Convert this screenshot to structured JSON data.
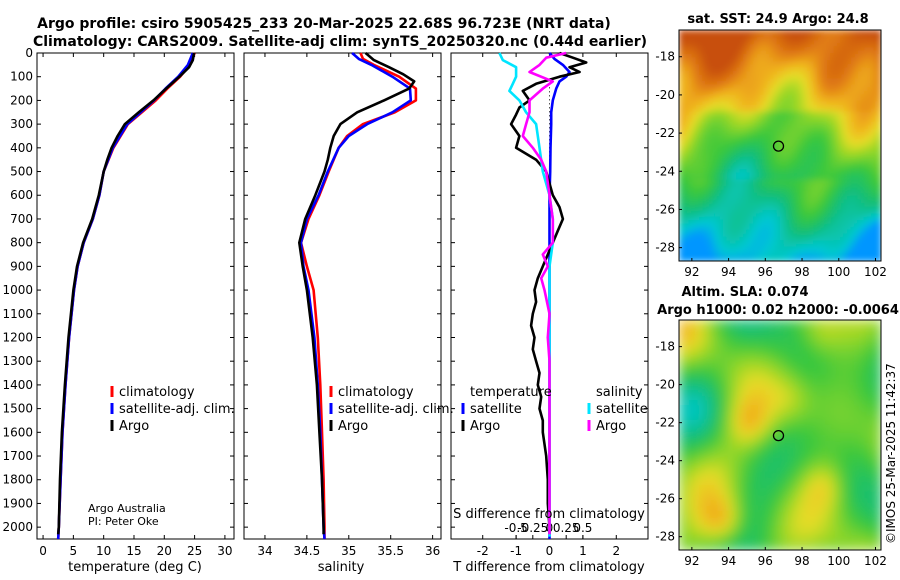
{
  "title": {
    "line1": "Argo profile: csiro 5905425_233 20-Mar-2025 22.68S 96.723E (NRT data)",
    "line2": "Climatology: CARS2009. Satellite-adj clim: synTS_20250320.nc (0.44d earlier)"
  },
  "credit": "©IMOS 25-Mar-2025 11:42:37",
  "attribution": {
    "org": "Argo Australia",
    "pi": "PI: Peter Oke"
  },
  "colors": {
    "red": "#ff0000",
    "blue": "#0000ff",
    "black": "#000000",
    "cyan": "#00e5ff",
    "magenta": "#ff00ff",
    "marker": "#000000"
  },
  "chart_data": [
    {
      "id": "temperature",
      "type": "line",
      "xlabel": "temperature (deg C)",
      "xlim": [
        -1,
        31.5
      ],
      "ylim": [
        2050,
        0
      ],
      "xticks": [
        0,
        5,
        10,
        15,
        20,
        25,
        30
      ],
      "yticks": [
        0,
        100,
        200,
        300,
        400,
        500,
        600,
        700,
        800,
        900,
        1000,
        1100,
        1200,
        1300,
        1400,
        1500,
        1600,
        1700,
        1800,
        1900,
        2000
      ],
      "legend": [
        "climatology",
        "satellite-adj. clim.",
        "Argo"
      ],
      "series": [
        {
          "name": "climatology",
          "color": "red",
          "depth": [
            0,
            50,
            100,
            150,
            200,
            250,
            300,
            400,
            500,
            600,
            700,
            800,
            900,
            1000,
            1200,
            1400,
            1600,
            1800,
            2000,
            2050
          ],
          "values": [
            25.0,
            24.2,
            22.6,
            20.5,
            18.6,
            16.3,
            14.0,
            11.6,
            10.0,
            9.3,
            8.2,
            6.7,
            5.7,
            5.1,
            4.3,
            3.7,
            3.2,
            2.9,
            2.6,
            2.5
          ]
        },
        {
          "name": "satellite-adj. clim.",
          "color": "blue",
          "depth": [
            0,
            50,
            100,
            150,
            200,
            250,
            300,
            400,
            500,
            600,
            700,
            800,
            900,
            1000,
            1200,
            1400,
            1600,
            1800,
            2000,
            2050
          ],
          "values": [
            24.7,
            23.9,
            22.3,
            20.2,
            18.3,
            16.1,
            13.9,
            11.5,
            10.0,
            9.3,
            8.2,
            6.7,
            5.7,
            5.1,
            4.3,
            3.7,
            3.2,
            2.9,
            2.6,
            2.5
          ]
        },
        {
          "name": "Argo",
          "color": "black",
          "depth": [
            0,
            30,
            60,
            100,
            150,
            200,
            250,
            300,
            350,
            400,
            450,
            500,
            600,
            700,
            800,
            900,
            1000,
            1200,
            1400,
            1600,
            1800,
            2000,
            2030
          ],
          "values": [
            24.9,
            24.7,
            24.1,
            22.5,
            20.3,
            18.2,
            15.8,
            13.5,
            12.3,
            11.3,
            10.6,
            10.0,
            9.2,
            8.1,
            6.6,
            5.6,
            5.0,
            4.2,
            3.6,
            3.1,
            2.8,
            2.6,
            2.5
          ]
        }
      ]
    },
    {
      "id": "salinity",
      "type": "line",
      "xlabel": "salinity",
      "xlim": [
        33.75,
        36.1
      ],
      "ylim": [
        2050,
        0
      ],
      "xticks": [
        34,
        34.5,
        35,
        35.5,
        36
      ],
      "xticklabels": [
        "34",
        "34.5",
        "35",
        "35.5",
        "36"
      ],
      "legend": [
        "climatology",
        "satellite-adj. clim.",
        "Argo"
      ],
      "series": [
        {
          "name": "climatology",
          "color": "red",
          "depth": [
            0,
            25,
            50,
            100,
            150,
            200,
            250,
            300,
            350,
            400,
            500,
            600,
            700,
            800,
            900,
            1000,
            1200,
            1400,
            1600,
            1800,
            2000,
            2050
          ],
          "values": [
            35.14,
            35.17,
            35.3,
            35.6,
            35.8,
            35.8,
            35.55,
            35.17,
            34.98,
            34.88,
            34.76,
            34.65,
            34.52,
            34.43,
            34.5,
            34.58,
            34.63,
            34.66,
            34.68,
            34.7,
            34.71,
            34.71
          ]
        },
        {
          "name": "satellite-adj. clim.",
          "color": "blue",
          "depth": [
            0,
            25,
            50,
            100,
            150,
            200,
            250,
            300,
            350,
            400,
            500,
            600,
            700,
            800,
            900,
            1000,
            1200,
            1400,
            1600,
            1800,
            2000,
            2050
          ],
          "values": [
            35.04,
            35.12,
            35.27,
            35.52,
            35.73,
            35.74,
            35.52,
            35.22,
            35.0,
            34.88,
            34.75,
            34.64,
            34.5,
            34.43,
            34.46,
            34.52,
            34.59,
            34.63,
            34.66,
            34.68,
            34.7,
            34.71
          ]
        },
        {
          "name": "Argo",
          "color": "black",
          "depth": [
            0,
            30,
            60,
            90,
            120,
            150,
            200,
            250,
            300,
            350,
            400,
            450,
            500,
            600,
            700,
            800,
            900,
            1000,
            1200,
            1400,
            1600,
            1800,
            2000,
            2030
          ],
          "values": [
            35.2,
            35.3,
            35.48,
            35.65,
            35.78,
            35.72,
            35.42,
            35.1,
            34.9,
            34.82,
            34.78,
            34.75,
            34.71,
            34.6,
            34.48,
            34.41,
            34.45,
            34.5,
            34.57,
            34.62,
            34.65,
            34.68,
            34.7,
            34.7
          ]
        }
      ]
    },
    {
      "id": "difference",
      "type": "line",
      "xlabel": "T difference from climatology",
      "top_xlabel": "S difference from climatology",
      "xlim": [
        -2.95,
        2.95
      ],
      "ylim": [
        2050,
        0
      ],
      "xticks": [
        -2,
        -1,
        0,
        1,
        2
      ],
      "top_ticks": [
        -1.0,
        -0.5,
        0,
        0.5,
        1.0
      ],
      "top_ticklabels": [
        "-0.5",
        "-0.25",
        "0",
        "0.25",
        "0.5"
      ],
      "legend_headers": [
        "temperature",
        "salinity"
      ],
      "legend": [
        "satellite",
        "Argo",
        "satellite",
        "Argo"
      ],
      "series": [
        {
          "name": "temperature satellite",
          "color": "blue",
          "depth": [
            0,
            25,
            50,
            80,
            100,
            120,
            150,
            200,
            250,
            300,
            400,
            500,
            600,
            700,
            800,
            900,
            1000,
            1200,
            1400,
            1600,
            1800,
            2000,
            2050
          ],
          "values": [
            0.0,
            0.15,
            0.4,
            0.6,
            0.5,
            0.3,
            0.2,
            0.1,
            0.05,
            0.05,
            0.03,
            0.02,
            0.0,
            0.0,
            0.0,
            0.0,
            0.0,
            0.0,
            0.0,
            0.0,
            0.0,
            0.0,
            0.0
          ]
        },
        {
          "name": "temperature Argo",
          "color": "black",
          "depth": [
            0,
            20,
            40,
            60,
            80,
            100,
            130,
            160,
            200,
            230,
            260,
            300,
            350,
            400,
            450,
            500,
            550,
            600,
            650,
            700,
            750,
            800,
            850,
            900,
            950,
            1000,
            1050,
            1100,
            1150,
            1200,
            1250,
            1300,
            1350,
            1400,
            1450,
            1500,
            1550,
            1600,
            1700,
            1800,
            1900,
            2000,
            2030
          ],
          "values": [
            0.3,
            0.7,
            1.1,
            0.6,
            0.9,
            0.3,
            -0.4,
            -0.8,
            -0.6,
            -0.9,
            -1.0,
            -1.15,
            -0.9,
            -1.0,
            -0.4,
            -0.1,
            0.0,
            0.1,
            0.3,
            0.4,
            0.25,
            0.1,
            -0.05,
            -0.2,
            -0.35,
            -0.45,
            -0.4,
            -0.5,
            -0.55,
            -0.45,
            -0.5,
            -0.4,
            -0.3,
            -0.35,
            -0.25,
            -0.3,
            -0.2,
            -0.2,
            -0.1,
            -0.05,
            -0.05,
            0.0,
            0.0
          ]
        },
        {
          "name": "salinity satellite",
          "color": "cyan",
          "depth": [
            0,
            30,
            60,
            100,
            130,
            160,
            200,
            250,
            300,
            400,
            500,
            600,
            700,
            800,
            900,
            1000,
            1200,
            1400,
            1600,
            1800,
            2000,
            2040
          ],
          "values": [
            -1.5,
            -1.4,
            -1.0,
            -1.0,
            -1.1,
            -1.2,
            -0.9,
            -0.7,
            -0.4,
            -0.3,
            -0.2,
            0.0,
            0.1,
            0.1,
            0.0,
            0.0,
            0.0,
            0.0,
            0.0,
            0.0,
            0.0,
            0.0
          ]
        },
        {
          "name": "salinity Argo",
          "color": "magenta",
          "depth": [
            0,
            20,
            50,
            80,
            120,
            150,
            200,
            250,
            300,
            350,
            400,
            450,
            500,
            600,
            700,
            800,
            850,
            900,
            950,
            1000,
            1100,
            1200,
            1300,
            1400,
            1500,
            1600,
            1700,
            1800,
            1900,
            2000,
            2030
          ],
          "values": [
            0.5,
            -0.1,
            -0.3,
            -0.6,
            0.1,
            -0.2,
            -0.6,
            -0.6,
            -0.7,
            -0.8,
            -0.5,
            -0.25,
            -0.1,
            0.0,
            0.1,
            0.1,
            -0.2,
            -0.05,
            -0.25,
            -0.15,
            0.0,
            -0.05,
            0.0,
            0.0,
            0.0,
            0.0,
            0.0,
            0.0,
            0.0,
            0.0,
            0.0
          ]
        }
      ]
    },
    {
      "id": "map_sst",
      "type": "heatmap",
      "title": "sat. SST: 24.9 Argo: 24.8",
      "xlim": [
        91.3,
        102.3
      ],
      "ylim": [
        -28.7,
        -16.6
      ],
      "xticks": [
        92,
        94,
        96,
        98,
        100,
        102
      ],
      "yticks": [
        -18,
        -20,
        -22,
        -24,
        -26,
        -28
      ],
      "marker": {
        "lon": 96.72,
        "lat": -22.68
      }
    },
    {
      "id": "map_sla",
      "type": "heatmap",
      "title": "Altim. SLA: 0.074",
      "subtitle": "Argo h1000: 0.02 h2000: -0.0064",
      "xlim": [
        91.3,
        102.3
      ],
      "ylim": [
        -28.7,
        -16.6
      ],
      "xticks": [
        92,
        94,
        96,
        98,
        100,
        102
      ],
      "yticks": [
        -18,
        -20,
        -22,
        -24,
        -26,
        -28
      ],
      "marker": {
        "lon": 96.72,
        "lat": -22.68
      }
    }
  ]
}
